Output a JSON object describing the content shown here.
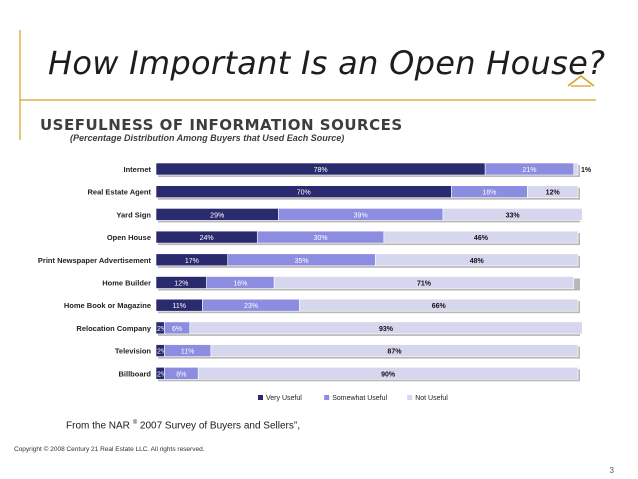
{
  "slide": {
    "title": "How Important Is an Open House?",
    "source_prefix": "From the NAR",
    "source_mark": "®",
    "source_suffix": " 2007 Survey of Buyers and Sellers”,",
    "copyright": "Copyright © 2008 Century 21 Real Estate LLC. All rights reserved.",
    "page_number": "3"
  },
  "colors": {
    "title_accent": "#d4a227",
    "very_useful": "#2a2a6e",
    "somewhat_useful": "#8c8ce0",
    "not_useful": "#d6d6ef"
  },
  "chart_data": {
    "type": "bar",
    "orientation": "horizontal",
    "stacked": true,
    "title": "USEFULNESS OF INFORMATION SOURCES",
    "subtitle": "(Percentage Distribution Among Buyers that Used Each Source)",
    "categories": [
      "Internet",
      "Real Estate Agent",
      "Yard Sign",
      "Open House",
      "Print Newspaper Advertisement",
      "Home Builder",
      "Home Book or Magazine",
      "Relocation Company",
      "Television",
      "Billboard"
    ],
    "series": [
      {
        "name": "Very Useful",
        "values": [
          78,
          70,
          29,
          24,
          17,
          12,
          11,
          2,
          2,
          2
        ]
      },
      {
        "name": "Somewhat Useful",
        "values": [
          21,
          18,
          39,
          30,
          35,
          16,
          23,
          6,
          11,
          8
        ]
      },
      {
        "name": "Not Useful",
        "values": [
          1,
          12,
          33,
          46,
          48,
          71,
          66,
          93,
          87,
          90
        ]
      }
    ],
    "xlim": [
      0,
      100
    ],
    "legend": "bottom-right"
  }
}
